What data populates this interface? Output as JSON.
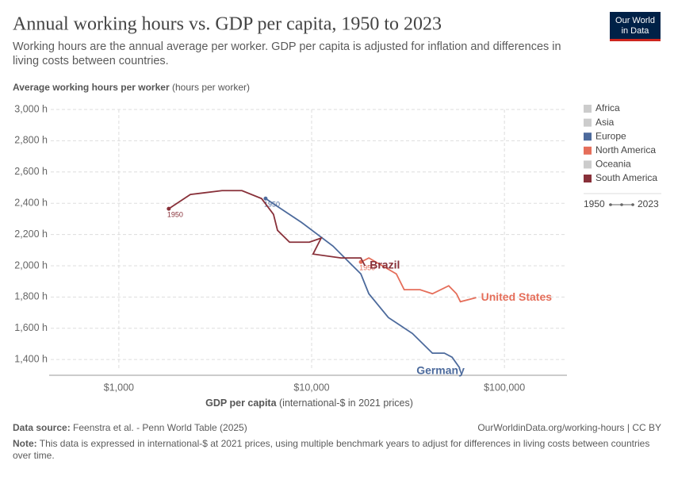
{
  "chart_data": {
    "type": "line",
    "title": "Annual working hours vs. GDP per capita, 1950 to 2023",
    "subtitle": "Working hours are the annual average per worker. GDP per capita is adjusted for inflation and differences in living costs between countries.",
    "y_label": "Average working hours per worker",
    "y_unit": "(hours per worker)",
    "x_label": "GDP per capita",
    "x_unit": "(international-$ in 2021 prices)",
    "log_x": true,
    "grid": true,
    "xlim": [
      435,
      211000
    ],
    "xticks": [
      {
        "value": 1000,
        "label": "$1,000"
      },
      {
        "value": 10000,
        "label": "$10,000"
      },
      {
        "value": 100000,
        "label": "$100,000"
      }
    ],
    "ylim": [
      1340,
      3000
    ],
    "yticks": [
      {
        "value": 1400,
        "label": "1,400 h"
      },
      {
        "value": 1600,
        "label": "1,600 h"
      },
      {
        "value": 1800,
        "label": "1,800 h"
      },
      {
        "value": 2000,
        "label": "2,000 h"
      },
      {
        "value": 2200,
        "label": "2,200 h"
      },
      {
        "value": 2400,
        "label": "2,400 h"
      },
      {
        "value": 2600,
        "label": "2,600 h"
      },
      {
        "value": 2800,
        "label": "2,800 h"
      },
      {
        "value": 3000,
        "label": "3,000 h"
      }
    ],
    "legend_position": "right",
    "legend": [
      {
        "name": "Africa",
        "color": "#cccccc"
      },
      {
        "name": "Asia",
        "color": "#cccccc"
      },
      {
        "name": "Europe",
        "color": "#4c6a9c"
      },
      {
        "name": "North America",
        "color": "#e56e5a"
      },
      {
        "name": "Oceania",
        "color": "#cccccc"
      },
      {
        "name": "South America",
        "color": "#883039"
      }
    ],
    "years": [
      1950,
      2023
    ],
    "series": [
      {
        "name": "Germany",
        "color": "#4c6a9c",
        "x": [
          5770,
          8850,
          12900,
          15600,
          18000,
          19800,
          25000,
          33300,
          42300,
          48800,
          53500,
          58700
        ],
        "y": [
          2430,
          2278,
          2126,
          2024,
          1948,
          1821,
          1669,
          1567,
          1441,
          1441,
          1415,
          1345
        ]
      },
      {
        "name": "United States",
        "color": "#e56e5a",
        "x": [
          18000,
          19800,
          27500,
          30200,
          36500,
          42300,
          51400,
          56400,
          59100,
          71400
        ],
        "y": [
          2024,
          2050,
          1948,
          1847,
          1847,
          1821,
          1872,
          1821,
          1770,
          1796
        ]
      },
      {
        "name": "Brazil",
        "color": "#883039",
        "x": [
          1815,
          2350,
          3430,
          4350,
          5500,
          6340,
          6650,
          7680,
          9730,
          11200,
          10170,
          14200,
          18000,
          18900
        ],
        "y": [
          2365,
          2456,
          2481,
          2481,
          2430,
          2329,
          2227,
          2151,
          2151,
          2177,
          2075,
          2050,
          2050,
          2000
        ]
      }
    ],
    "source_label": "Data source:",
    "source": "Feenstra et al. - Penn World Table (2025)",
    "url": "OurWorldinData.org/working-hours | CC BY",
    "note_label": "Note:",
    "note": "This data is expressed in international-$ at 2021 prices, using multiple benchmark years to adjust for differences in living costs between countries over time.",
    "logo": [
      "Our World",
      "in Data"
    ]
  }
}
